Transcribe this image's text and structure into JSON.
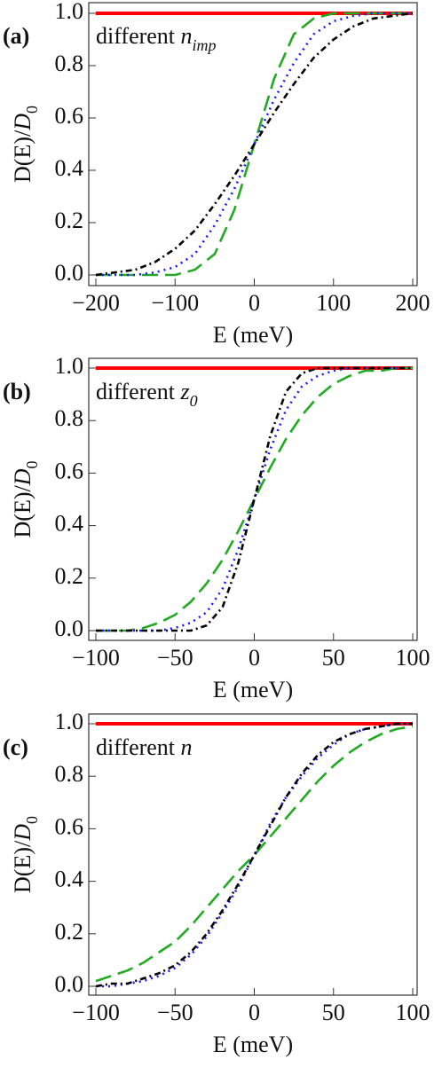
{
  "chart_data": [
    {
      "type": "line",
      "panel_label": "(a)",
      "annotation": "different ",
      "annotation_symbol": "n",
      "annotation_subscript": "imp",
      "xlabel": "E (meV)",
      "ylabel": "D(E)/",
      "ylabel_symbol": "D",
      "ylabel_subscript": "0",
      "x": [
        -200,
        -175,
        -150,
        -125,
        -100,
        -75,
        -50,
        -25,
        0,
        25,
        50,
        75,
        100,
        125,
        150,
        175,
        200
      ],
      "xlim": [
        -200,
        200
      ],
      "xticks": [
        {
          "value": -200,
          "label": "−200"
        },
        {
          "value": -100,
          "label": "−100"
        },
        0,
        100,
        200
      ],
      "ylim": [
        0,
        1
      ],
      "yticks": [
        {
          "value": 0,
          "label": "0.0"
        },
        0.2,
        0.4,
        0.6,
        0.8,
        {
          "value": 1,
          "label": "1.0"
        }
      ],
      "series": [
        {
          "color": "#ff0000",
          "dash": "solid",
          "values": [
            1,
            1,
            1,
            1,
            1,
            1,
            1,
            1,
            1,
            1,
            1,
            1,
            1,
            1,
            1,
            1,
            1
          ]
        },
        {
          "color": "#22aa22",
          "dash": "dashed",
          "values": [
            0,
            0,
            0,
            0,
            0,
            0.02,
            0.08,
            0.25,
            0.5,
            0.75,
            0.92,
            0.98,
            1,
            1,
            1,
            1,
            1
          ]
        },
        {
          "color": "#1a1aff",
          "dash": "dotted",
          "values": [
            0,
            0,
            0,
            0.01,
            0.03,
            0.08,
            0.19,
            0.33,
            0.5,
            0.67,
            0.81,
            0.92,
            0.97,
            0.99,
            1,
            1,
            1
          ]
        },
        {
          "color": "#000000",
          "dash": "dashdot",
          "values": [
            0,
            0.01,
            0.02,
            0.05,
            0.1,
            0.17,
            0.27,
            0.38,
            0.5,
            0.62,
            0.73,
            0.83,
            0.9,
            0.95,
            0.98,
            0.99,
            1
          ]
        }
      ]
    },
    {
      "type": "line",
      "panel_label": "(b)",
      "annotation": "different ",
      "annotation_symbol": "z",
      "annotation_subscript": "0",
      "xlabel": "E (meV)",
      "ylabel": "D(E)/",
      "ylabel_symbol": "D",
      "ylabel_subscript": "0",
      "x": [
        -100,
        -90,
        -80,
        -70,
        -60,
        -50,
        -40,
        -30,
        -20,
        -10,
        0,
        10,
        20,
        30,
        40,
        50,
        60,
        70,
        80,
        90,
        100
      ],
      "xlim": [
        -100,
        100
      ],
      "xticks": [
        {
          "value": -100,
          "label": "−100"
        },
        {
          "value": -50,
          "label": "−50"
        },
        0,
        50,
        100
      ],
      "ylim": [
        0,
        1
      ],
      "yticks": [
        {
          "value": 0,
          "label": "0.0"
        },
        0.2,
        0.4,
        0.6,
        0.8,
        {
          "value": 1,
          "label": "1.0"
        }
      ],
      "series": [
        {
          "color": "#ff0000",
          "dash": "solid",
          "values": [
            1,
            1,
            1,
            1,
            1,
            1,
            1,
            1,
            1,
            1,
            1,
            1,
            1,
            1,
            1,
            1,
            1,
            1,
            1,
            1,
            1
          ]
        },
        {
          "color": "#22aa22",
          "dash": "dashed",
          "values": [
            0,
            0,
            0,
            0.01,
            0.03,
            0.06,
            0.11,
            0.18,
            0.27,
            0.38,
            0.5,
            0.62,
            0.73,
            0.82,
            0.89,
            0.94,
            0.97,
            0.99,
            0.99,
            1,
            1
          ]
        },
        {
          "color": "#1a1aff",
          "dash": "dotted",
          "values": [
            0,
            0,
            0,
            0,
            0,
            0.01,
            0.03,
            0.07,
            0.16,
            0.31,
            0.5,
            0.69,
            0.84,
            0.93,
            0.97,
            0.99,
            1,
            1,
            1,
            1,
            1
          ]
        },
        {
          "color": "#000000",
          "dash": "dashdot",
          "values": [
            0,
            0,
            0,
            0,
            0,
            0,
            0,
            0.02,
            0.09,
            0.26,
            0.5,
            0.74,
            0.91,
            0.98,
            1,
            1,
            1,
            1,
            1,
            1,
            1
          ]
        }
      ]
    },
    {
      "type": "line",
      "panel_label": "(c)",
      "annotation": "different ",
      "annotation_symbol": "n",
      "xlabel": "E (meV)",
      "ylabel": "D(E)/",
      "ylabel_symbol": "D",
      "ylabel_subscript": "0",
      "x": [
        -100,
        -90,
        -80,
        -70,
        -60,
        -50,
        -40,
        -30,
        -20,
        -10,
        0,
        10,
        20,
        30,
        40,
        50,
        60,
        70,
        80,
        90,
        100
      ],
      "xlim": [
        -100,
        100
      ],
      "xticks": [
        {
          "value": -100,
          "label": "−100"
        },
        {
          "value": -50,
          "label": "−50"
        },
        0,
        50,
        100
      ],
      "ylim": [
        0,
        1
      ],
      "yticks": [
        {
          "value": 0,
          "label": "0.0"
        },
        0.2,
        0.4,
        0.6,
        0.8,
        {
          "value": 1,
          "label": "1.0"
        }
      ],
      "series": [
        {
          "color": "#ff0000",
          "dash": "solid",
          "values": [
            1,
            1,
            1,
            1,
            1,
            1,
            1,
            1,
            1,
            1,
            1,
            1,
            1,
            1,
            1,
            1,
            1,
            1,
            1,
            1,
            1
          ]
        },
        {
          "color": "#22aa22",
          "dash": "dashed",
          "values": [
            0.02,
            0.04,
            0.06,
            0.09,
            0.13,
            0.17,
            0.23,
            0.3,
            0.37,
            0.44,
            0.5,
            0.57,
            0.64,
            0.71,
            0.78,
            0.84,
            0.89,
            0.93,
            0.96,
            0.98,
            0.99
          ]
        },
        {
          "color": "#1a1aff",
          "dash": "dotted",
          "values": [
            0,
            0,
            0.01,
            0.02,
            0.04,
            0.07,
            0.12,
            0.19,
            0.28,
            0.38,
            0.5,
            0.62,
            0.72,
            0.8,
            0.87,
            0.92,
            0.96,
            0.98,
            0.99,
            1,
            1
          ]
        },
        {
          "color": "#000000",
          "dash": "dashdot",
          "values": [
            0,
            0.01,
            0.01,
            0.03,
            0.05,
            0.08,
            0.13,
            0.2,
            0.29,
            0.39,
            0.5,
            0.61,
            0.72,
            0.81,
            0.88,
            0.93,
            0.96,
            0.98,
            0.99,
            1,
            1
          ]
        }
      ]
    }
  ]
}
